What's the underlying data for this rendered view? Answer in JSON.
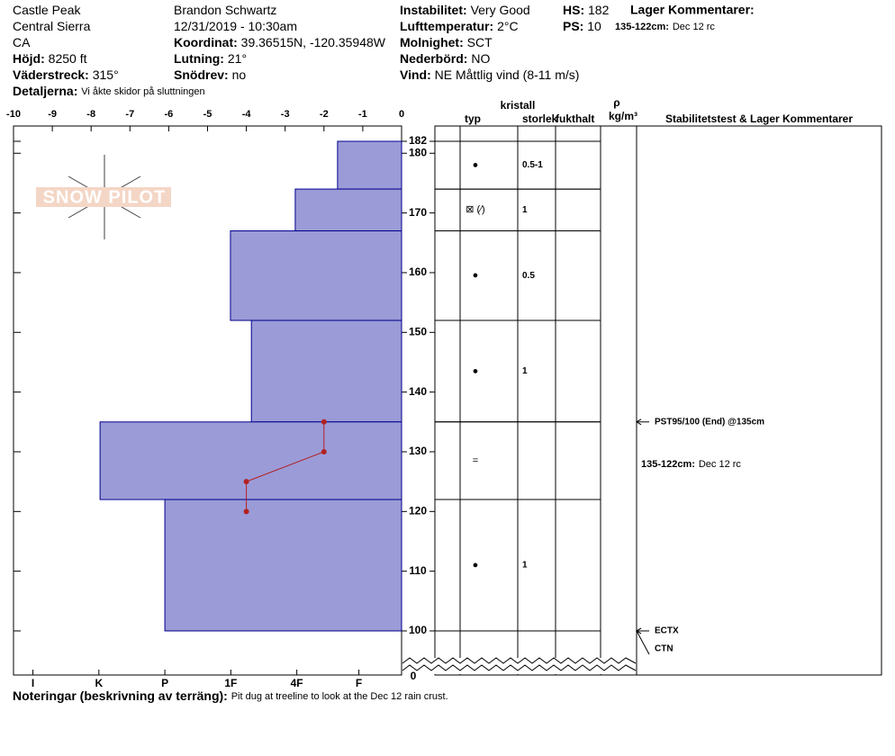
{
  "header": {
    "col1": [
      {
        "value": "Castle Peak"
      },
      {
        "value": "Central Sierra"
      },
      {
        "value": "CA"
      },
      {
        "label": "Höjd:",
        "value": "8250 ft"
      },
      {
        "label": "Väderstreck:",
        "value": "315°"
      }
    ],
    "details": {
      "label": "Detaljerna:",
      "value": "Vi åkte skidor på sluttningen"
    },
    "col2": [
      {
        "value": "Brandon Schwartz"
      },
      {
        "value": "12/31/2019 - 10:30am"
      },
      {
        "label": "Koordinat:",
        "value": "39.36515N, -120.35948W"
      },
      {
        "label": "Lutning:",
        "value": "21°"
      },
      {
        "label": "Snödrev:",
        "value": "no"
      }
    ],
    "col3": [
      {
        "label": "Instabilitet:",
        "value": "Very Good"
      },
      {
        "label": "Lufttemperatur:",
        "value": "2°C"
      },
      {
        "label": "Molnighet:",
        "value": "SCT"
      },
      {
        "label": "Nederbörd:",
        "value": "NO"
      },
      {
        "label": "Vind:",
        "value": "NE Måttlig vind (8-11 m/s)"
      }
    ],
    "col4": [
      {
        "label": "HS:",
        "value": "182"
      },
      {
        "label": "PS:",
        "value": "10"
      }
    ],
    "comments_title": "Lager Kommentarer:",
    "comment": {
      "label": "135-122cm:",
      "value": "Dec 12 rc"
    },
    "logo": "SNOW PILOT"
  },
  "chart_data": {
    "type": "snow_profile",
    "xlim": [
      -10,
      0
    ],
    "xticks": [
      -10,
      -9,
      -8,
      -7,
      -6,
      -5,
      -4,
      -3,
      -2,
      -1,
      0
    ],
    "hardness_ticks": [
      {
        "value": -9.5,
        "label": "I"
      },
      {
        "value": -7.8,
        "label": "K"
      },
      {
        "value": -6.1,
        "label": "P"
      },
      {
        "value": -4.4,
        "label": "1F"
      },
      {
        "value": -2.7,
        "label": "4F"
      },
      {
        "value": -1.1,
        "label": "F"
      }
    ],
    "ylim": [
      100,
      182
    ],
    "yticks": [
      182,
      180,
      170,
      160,
      150,
      140,
      130,
      120,
      110,
      100
    ],
    "y_break_tick": 0,
    "layer_color": "#9b9bd8",
    "layers": [
      {
        "top": 182,
        "bottom": 174,
        "hardness": -1.65,
        "grain": "●",
        "size": "0.5-1"
      },
      {
        "top": 174,
        "bottom": 167,
        "hardness": -2.74,
        "grain": "⊠ (⁄)",
        "size": "1"
      },
      {
        "top": 167,
        "bottom": 152,
        "hardness": -4.41,
        "grain": "●",
        "size": "0.5"
      },
      {
        "top": 152,
        "bottom": 135,
        "hardness": -3.87,
        "grain": "●",
        "size": "1"
      },
      {
        "top": 135,
        "bottom": 122,
        "hardness": -7.77,
        "grain": "="
      },
      {
        "top": 122,
        "bottom": 100,
        "hardness": -6.1,
        "grain": "●",
        "size": "1"
      }
    ],
    "temperature": {
      "color": "#b22222",
      "depth": [
        135,
        130,
        125,
        120
      ],
      "temp": [
        -2,
        -2,
        -4,
        -4
      ]
    },
    "table_headers": {
      "crystal": "kristall",
      "type": "typ",
      "size": "storlek",
      "moisture": "fukthalt",
      "rho": "ρ",
      "density_unit": "kg/m³",
      "comments": "Stabilitetstest & Lager Kommentarer"
    },
    "stability_tests": [
      {
        "depth": 135,
        "label": "PST95/100 (End) @135cm"
      },
      {
        "depth": 100,
        "label": "ECTX"
      },
      {
        "depth": 100,
        "label": "CTN"
      }
    ],
    "layer_comments": [
      {
        "top": 135,
        "bottom": 122,
        "label": "135-122cm:",
        "value": "Dec 12 rc"
      }
    ]
  },
  "footer": {
    "label": "Noteringar (beskrivning av terräng):",
    "value": "Pit dug at treeline to look at the Dec 12 rain crust."
  }
}
